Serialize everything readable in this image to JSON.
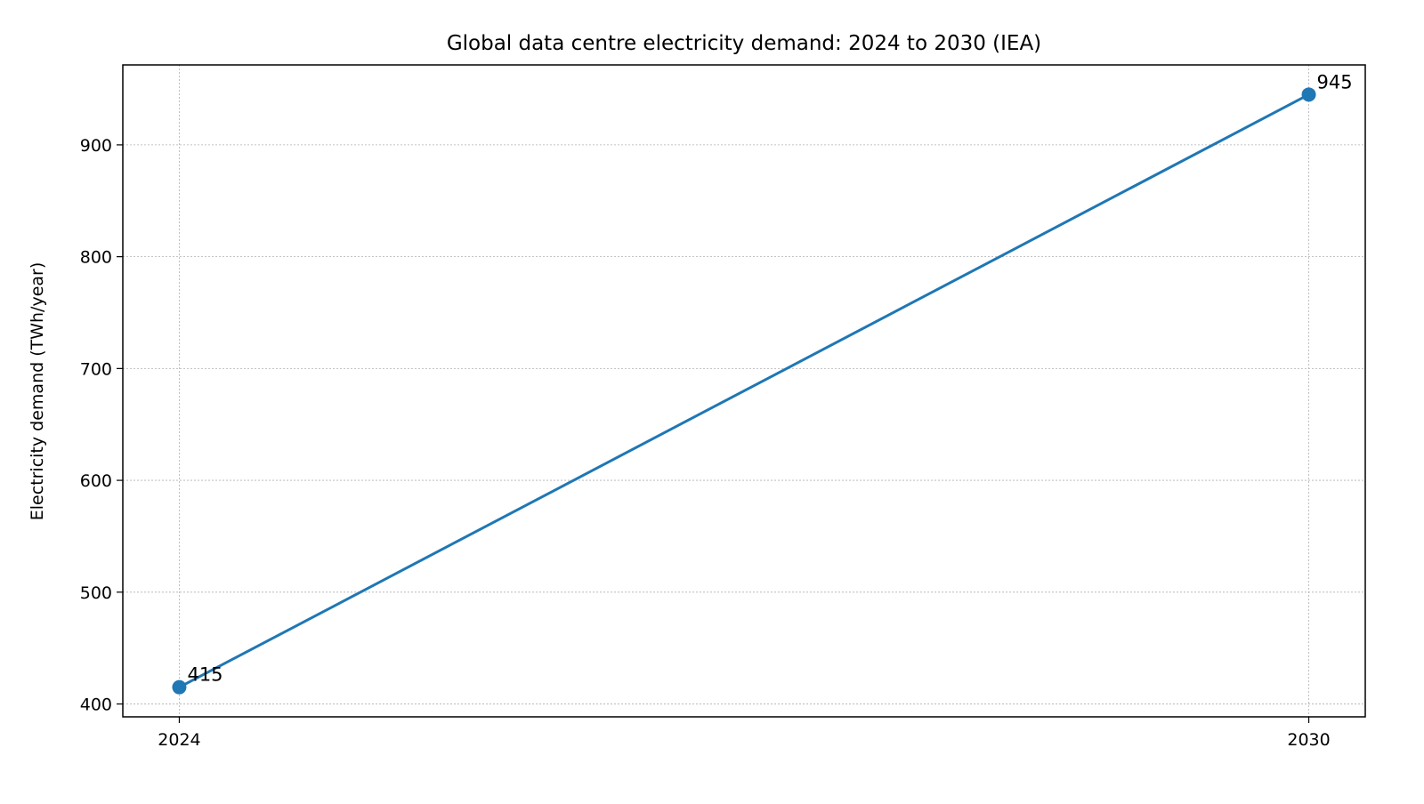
{
  "chart_data": {
    "type": "line",
    "title": "Global data centre electricity demand: 2024 to 2030 (IEA)",
    "xlabel": "",
    "ylabel": "Electricity demand (TWh/year)",
    "x": [
      2024,
      2030
    ],
    "xticks": [
      "2024",
      "2030"
    ],
    "yticks": [
      400,
      500,
      600,
      700,
      800,
      900
    ],
    "xlim": [
      2023.7,
      2030.3
    ],
    "ylim": [
      388.5,
      971.5
    ],
    "grid": true,
    "series": [
      {
        "values": [
          415,
          945
        ],
        "color": "#1f77b4",
        "marker": "circle",
        "data_labels": [
          "415",
          "945"
        ]
      }
    ]
  }
}
